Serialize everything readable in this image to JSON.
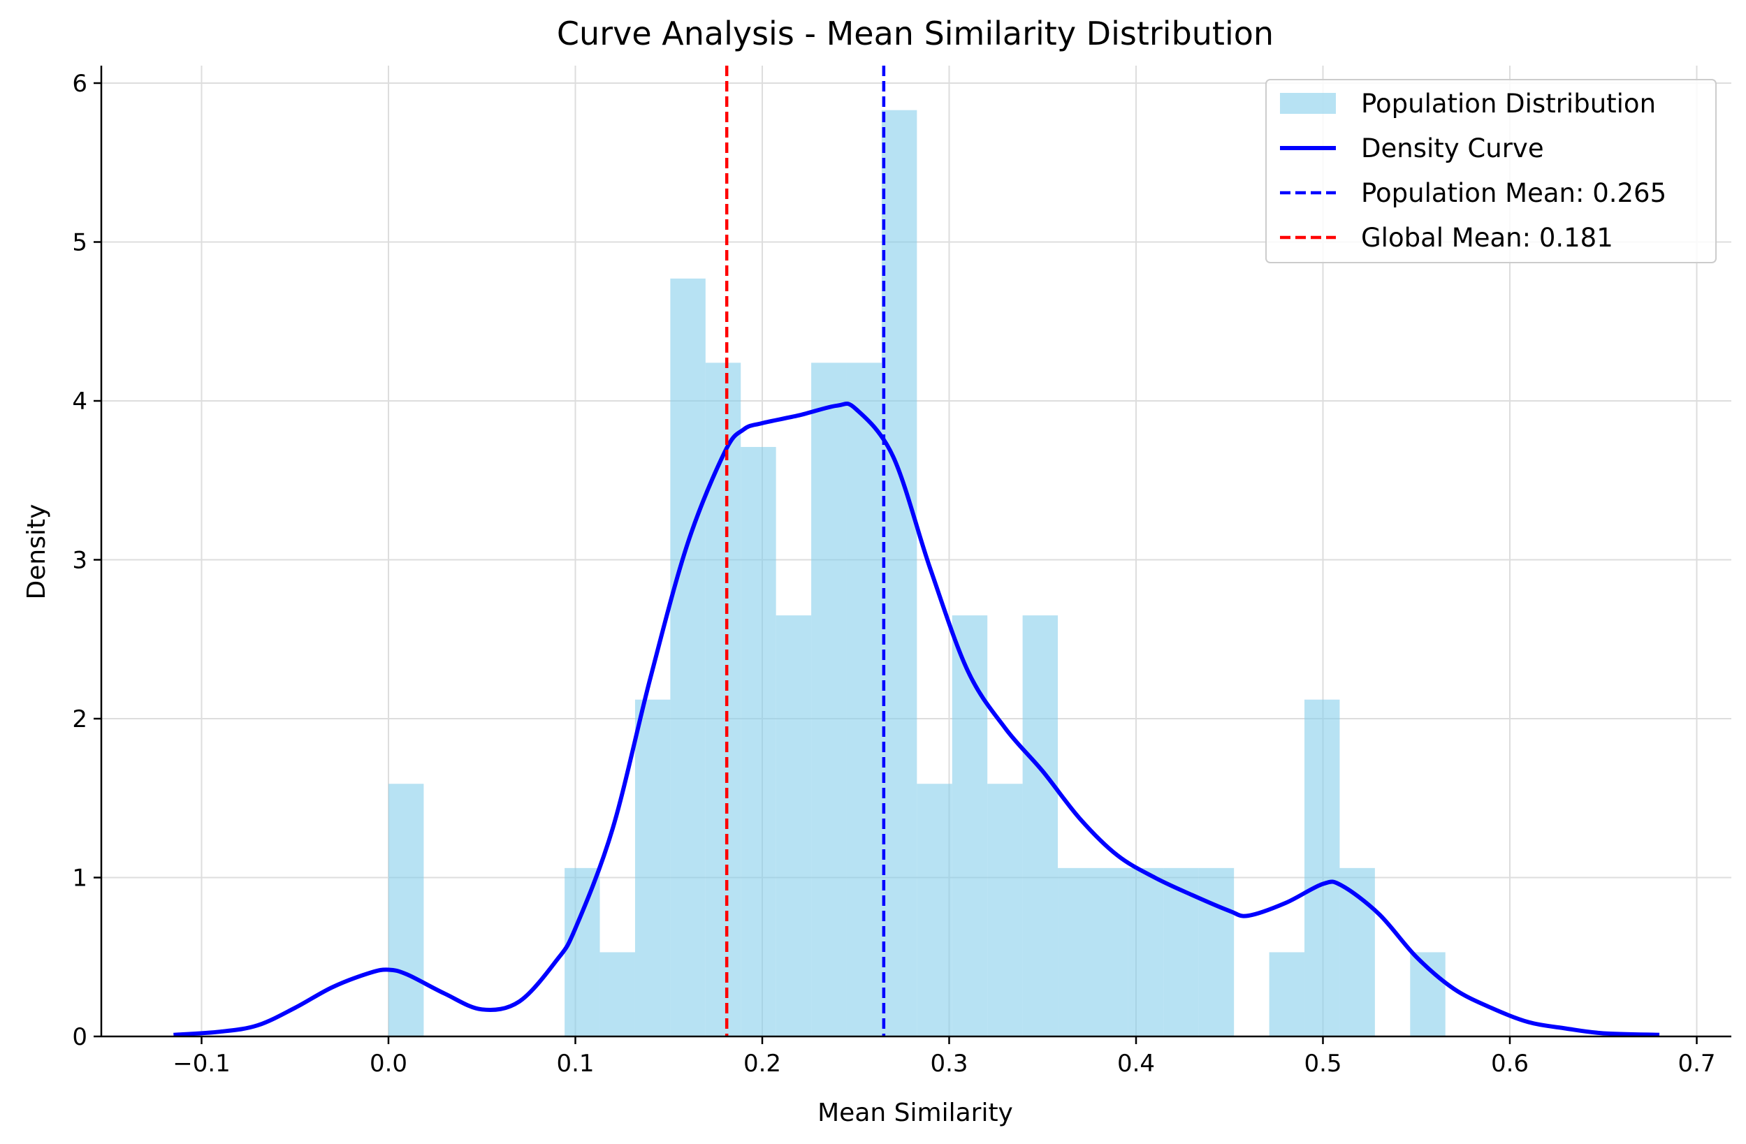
{
  "chart_data": {
    "type": "histogram",
    "title": "Curve Analysis - Mean Similarity Distribution",
    "xlabel": "Mean Similarity",
    "ylabel": "Density",
    "xlim": [
      -0.125,
      0.72
    ],
    "ylim": [
      0,
      6.15
    ],
    "xticks": [
      -0.1,
      0.0,
      0.1,
      0.2,
      0.3,
      0.4,
      0.5,
      0.6,
      0.7
    ],
    "xtick_labels": [
      "−0.1",
      "0.0",
      "0.1",
      "0.2",
      "0.3",
      "0.4",
      "0.5",
      "0.6",
      "0.7"
    ],
    "yticks": [
      0,
      1,
      2,
      3,
      4,
      5,
      6
    ],
    "ytick_labels": [
      "0",
      "1",
      "2",
      "3",
      "4",
      "5",
      "6"
    ],
    "grid": true,
    "legend_position": "top-right",
    "histogram": {
      "name": "Population Distribution",
      "color": "#87CEEB",
      "bin_edges": [
        0.0,
        0.01885,
        0.0377,
        0.05655,
        0.0754,
        0.09425,
        0.1131,
        0.13195,
        0.1508,
        0.16965,
        0.1885,
        0.20735,
        0.2262,
        0.24505,
        0.2639,
        0.28275,
        0.3016,
        0.32045,
        0.3393,
        0.35815,
        0.377,
        0.39585,
        0.4147,
        0.43355,
        0.4524,
        0.47125,
        0.4901,
        0.50895,
        0.5278,
        0.54665,
        0.5655
      ],
      "densities": [
        1.59,
        0,
        0,
        0,
        0,
        1.06,
        0.53,
        2.12,
        4.77,
        4.24,
        3.71,
        2.65,
        4.24,
        4.24,
        5.83,
        1.59,
        2.65,
        1.59,
        2.65,
        1.06,
        1.06,
        1.06,
        1.06,
        1.06,
        0,
        0.53,
        2.12,
        1.06,
        0,
        0.53
      ]
    },
    "density_curve": {
      "name": "Density Curve",
      "color": "#0000ff",
      "x": [
        -0.115,
        -0.09,
        -0.07,
        -0.05,
        -0.03,
        -0.01,
        0.0,
        0.01,
        0.03,
        0.05,
        0.07,
        0.09,
        0.1,
        0.12,
        0.14,
        0.16,
        0.18,
        0.19,
        0.2,
        0.22,
        0.24,
        0.25,
        0.27,
        0.29,
        0.31,
        0.33,
        0.35,
        0.37,
        0.39,
        0.41,
        0.43,
        0.45,
        0.46,
        0.48,
        0.5,
        0.51,
        0.53,
        0.55,
        0.57,
        0.59,
        0.61,
        0.63,
        0.65,
        0.68
      ],
      "y": [
        0.01,
        0.03,
        0.07,
        0.18,
        0.31,
        0.4,
        0.42,
        0.39,
        0.27,
        0.17,
        0.22,
        0.48,
        0.68,
        1.31,
        2.25,
        3.1,
        3.68,
        3.82,
        3.86,
        3.91,
        3.97,
        3.95,
        3.65,
        2.94,
        2.3,
        1.94,
        1.67,
        1.37,
        1.14,
        1.0,
        0.89,
        0.79,
        0.76,
        0.84,
        0.96,
        0.95,
        0.77,
        0.5,
        0.3,
        0.18,
        0.09,
        0.05,
        0.02,
        0.01
      ]
    },
    "reference_lines": [
      {
        "name": "Population Mean: 0.265",
        "x": 0.265,
        "color": "#0000ff",
        "style": "dashed"
      },
      {
        "name": "Global Mean: 0.181",
        "x": 0.181,
        "color": "#ff0000",
        "style": "dashed"
      }
    ],
    "colors": {
      "grid": "#dddddd",
      "axis": "#000000",
      "legend_border": "#cccccc"
    }
  }
}
